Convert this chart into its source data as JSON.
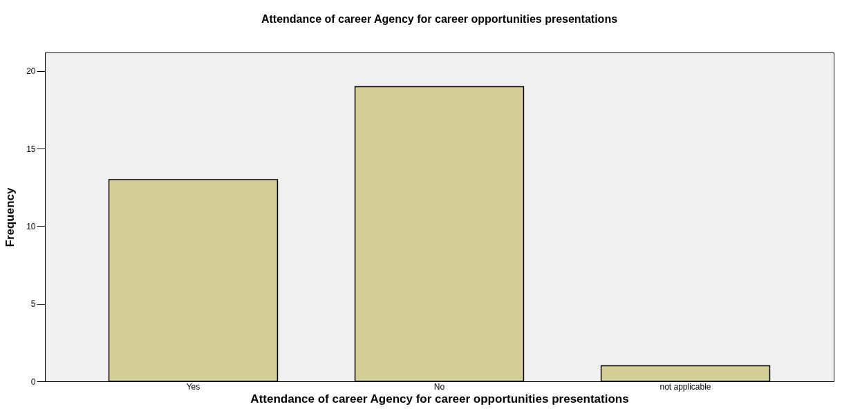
{
  "chart_data": {
    "type": "bar",
    "title": "Attendance of career Agency for career opportunities presentations",
    "xlabel": "Attendance of career Agency for career opportunities presentations",
    "ylabel": "Frequency",
    "categories": [
      "Yes",
      "No",
      "not applicable"
    ],
    "values": [
      13,
      19,
      1
    ],
    "color": "#d3ce97",
    "ylim": [
      0,
      21.2
    ],
    "yticks": [
      0,
      5,
      10,
      15,
      20
    ],
    "grid": false
  }
}
